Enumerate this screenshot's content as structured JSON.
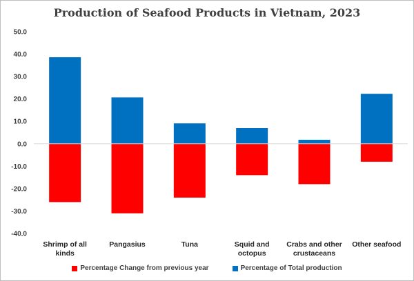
{
  "chart_data": {
    "type": "bar",
    "title": "Production of Seafood Products in Vietnam, 2023",
    "categories": [
      [
        "Shrimp of all",
        "kinds"
      ],
      [
        "Pangasius"
      ],
      [
        "Tuna"
      ],
      [
        "Squid and",
        "octopus"
      ],
      [
        "Crabs and other",
        "crustaceans"
      ],
      [
        "Other seafood"
      ]
    ],
    "series": [
      {
        "name": "Percentage of Total production",
        "color": "#0070c0",
        "values": [
          38.6,
          20.7,
          9.1,
          7.0,
          1.8,
          22.3
        ]
      },
      {
        "name": "Percentage Change from previous year",
        "color": "#ff0000",
        "values": [
          -26.0,
          -31.0,
          -24.0,
          -14.0,
          -18.0,
          -8.0
        ]
      }
    ],
    "ylim": [
      -40,
      50
    ],
    "yticks": [
      "50.0",
      "40.0",
      "30.0",
      "20.0",
      "10.0",
      "0.0",
      "-10.0",
      "-20.0",
      "-30.0",
      "-40.0"
    ],
    "xlabel": "",
    "ylabel": "",
    "legend": "bottom",
    "legend_order": [
      "Percentage Change from previous year",
      "Percentage of Total production"
    ]
  }
}
